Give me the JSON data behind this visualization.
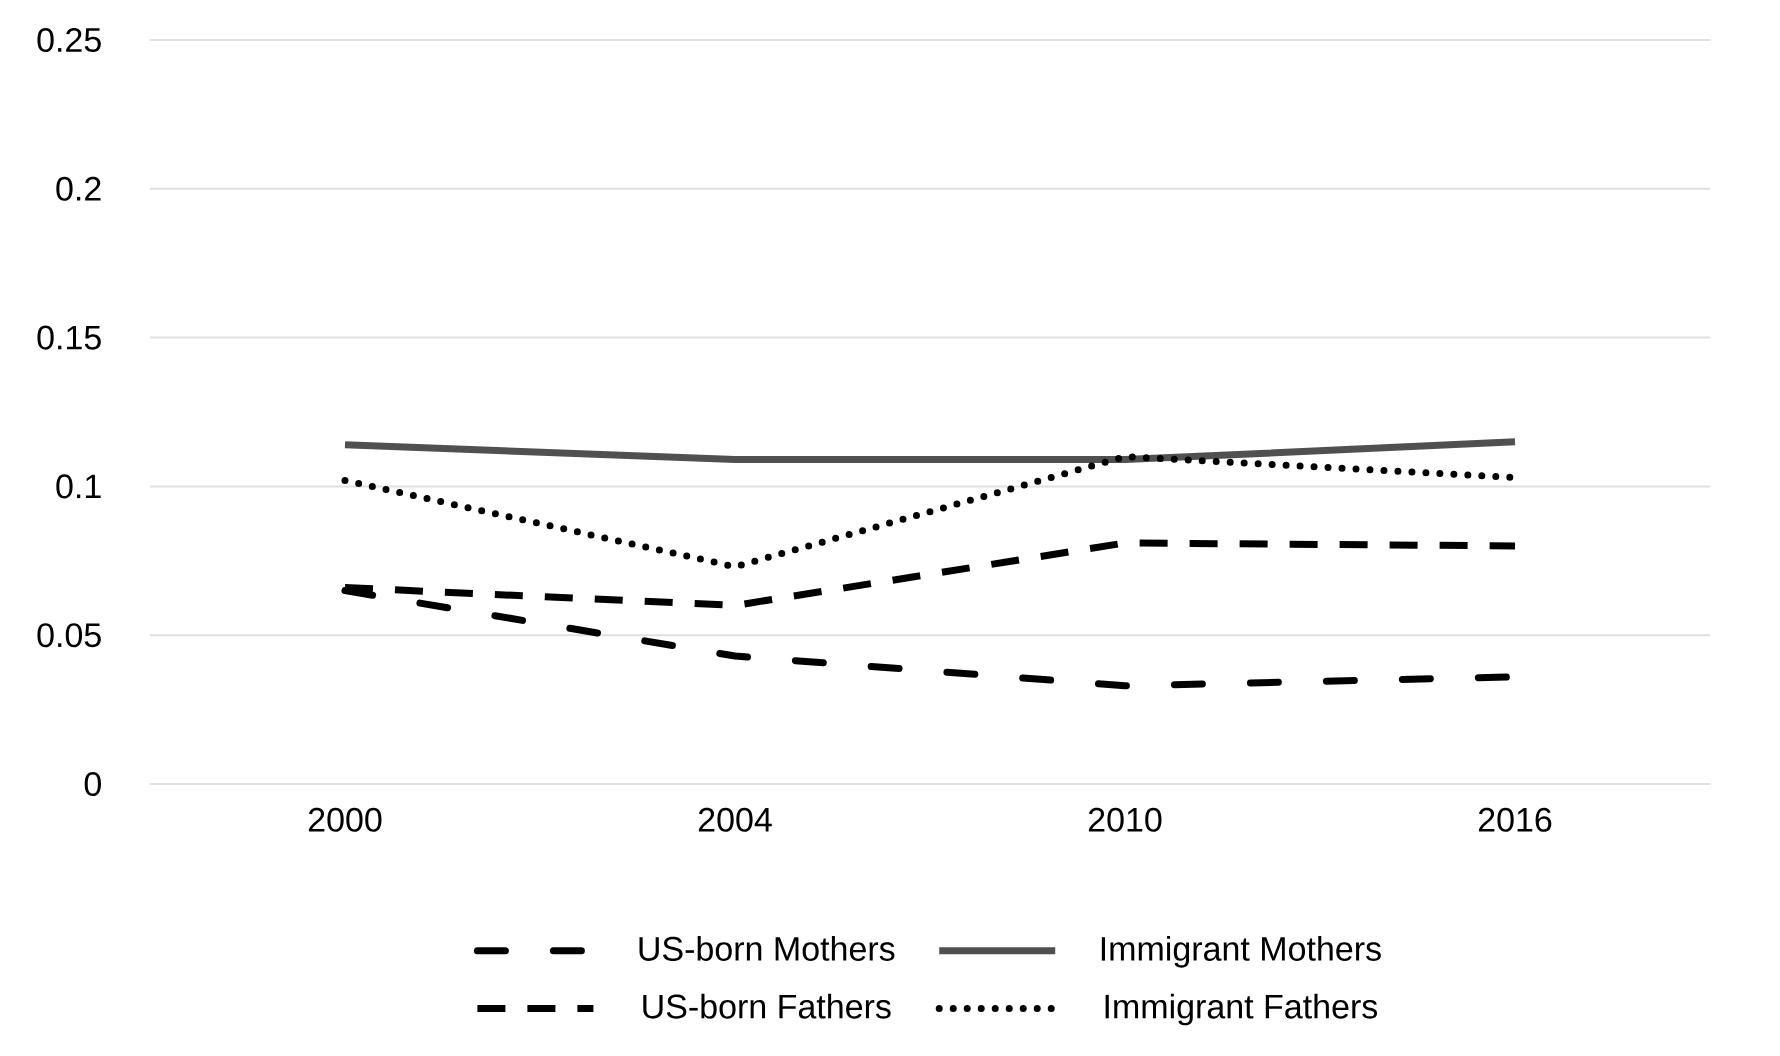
{
  "chart_data": {
    "type": "line",
    "categories": [
      "2000",
      "2004",
      "2010",
      "2016"
    ],
    "series": [
      {
        "name": "US-born Mothers",
        "color": "#000000",
        "line_style": "dashdotted",
        "values": [
          0.065,
          0.043,
          0.033,
          0.036
        ]
      },
      {
        "name": "Immigrant Mothers",
        "color": "#505050",
        "line_style": "solid",
        "values": [
          0.114,
          0.109,
          0.109,
          0.115
        ]
      },
      {
        "name": "US-born Fathers",
        "color": "#000000",
        "line_style": "dashed",
        "values": [
          0.066,
          0.06,
          0.081,
          0.08
        ]
      },
      {
        "name": "Immigrant Fathers",
        "color": "#000000",
        "line_style": "dotted",
        "values": [
          0.102,
          0.073,
          0.11,
          0.103
        ]
      }
    ],
    "ylim": [
      0,
      0.25
    ],
    "yticks": [
      0,
      0.05,
      0.1,
      0.15,
      0.2,
      0.25
    ],
    "grid": "y",
    "legend": "bottom",
    "marker": "none"
  }
}
